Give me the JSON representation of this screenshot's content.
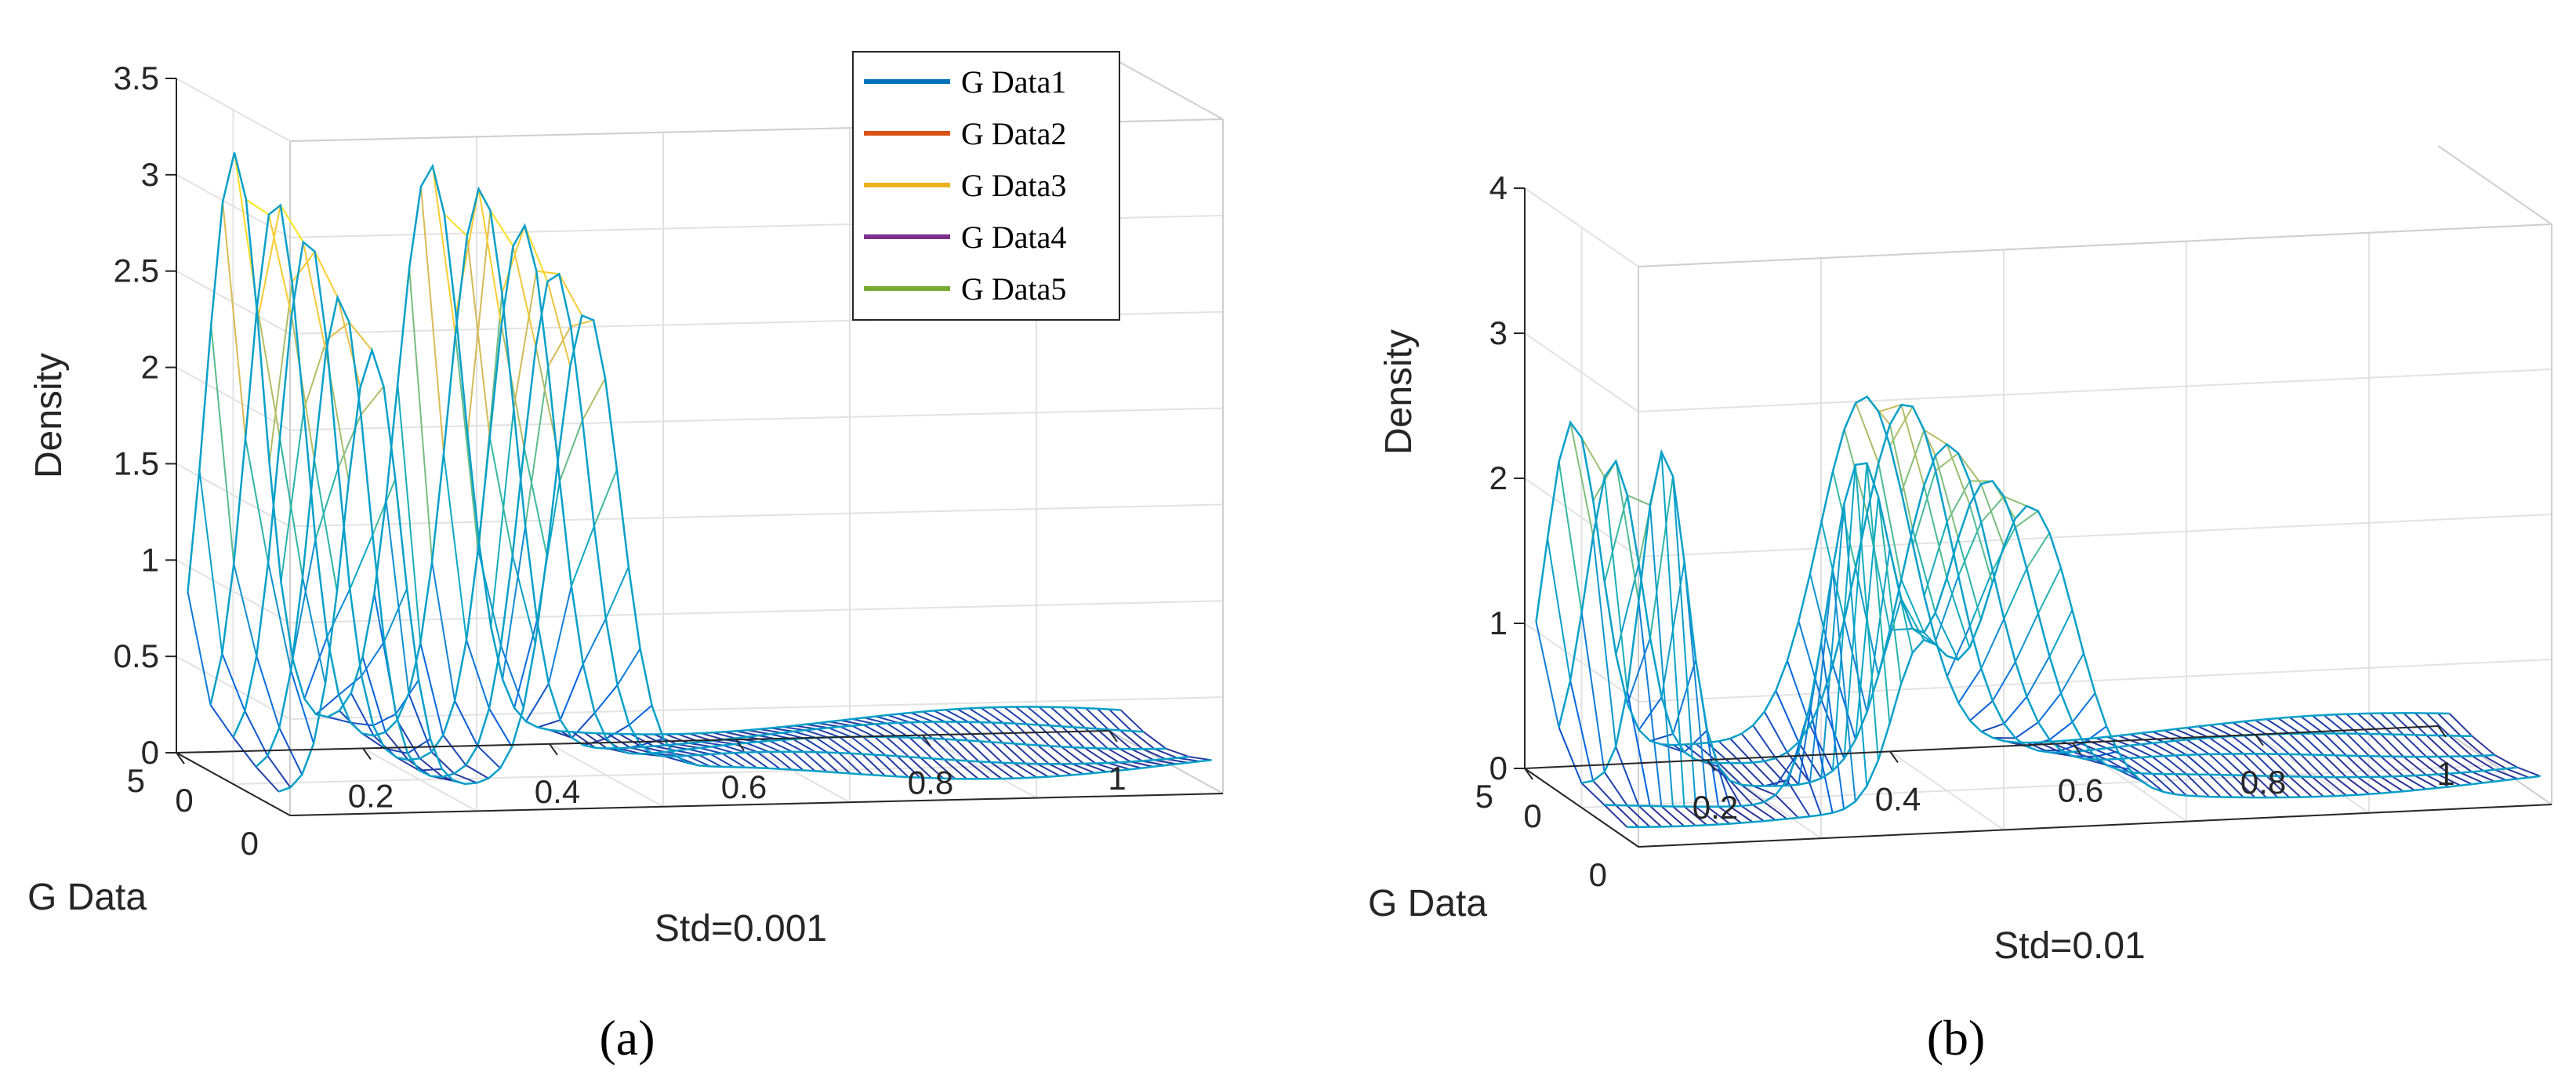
{
  "chart_data": [
    {
      "type": "surface-mesh",
      "panel_label": "(a)",
      "xlabel": "Std=0.001",
      "ylabel": "G Data",
      "zlabel": "Density",
      "xlim": [
        0,
        1
      ],
      "ylim": [
        0,
        5
      ],
      "zlim": [
        0,
        3.5
      ],
      "x_ticks": [
        "0",
        "0.2",
        "0.4",
        "0.6",
        "0.8",
        "1"
      ],
      "y_ticks": [
        "0",
        "5"
      ],
      "z_ticks": [
        "0",
        "0.5",
        "1",
        "1.5",
        "2",
        "2.5",
        "3",
        "3.5"
      ],
      "grid": true,
      "legend": {
        "placement": "top-right",
        "entries": [
          {
            "label": "G Data1",
            "color": "#0072BD"
          },
          {
            "label": "G Data2",
            "color": "#D95319"
          },
          {
            "label": "G Data3",
            "color": "#EDB120"
          },
          {
            "label": "G Data4",
            "color": "#7E2F8E"
          },
          {
            "label": "G Data5",
            "color": "#77AC30"
          }
        ]
      },
      "series": [
        {
          "name": "G Data1",
          "peaks": [
            {
              "x": 0.05,
              "height": 3.0,
              "width": 0.03
            },
            {
              "x": 0.26,
              "height": 2.9,
              "width": 0.035
            }
          ]
        },
        {
          "name": "G Data2",
          "peaks": [
            {
              "x": 0.07,
              "height": 2.8,
              "width": 0.03
            },
            {
              "x": 0.29,
              "height": 2.9,
              "width": 0.035
            }
          ]
        },
        {
          "name": "G Data3",
          "peaks": [
            {
              "x": 0.08,
              "height": 2.7,
              "width": 0.03
            },
            {
              "x": 0.31,
              "height": 2.8,
              "width": 0.035
            }
          ]
        },
        {
          "name": "G Data4",
          "peaks": [
            {
              "x": 0.09,
              "height": 2.5,
              "width": 0.03
            },
            {
              "x": 0.32,
              "height": 2.6,
              "width": 0.035
            }
          ]
        },
        {
          "name": "G Data5",
          "peaks": [
            {
              "x": 0.1,
              "height": 2.3,
              "width": 0.03
            },
            {
              "x": 0.33,
              "height": 2.4,
              "width": 0.035
            }
          ]
        }
      ]
    },
    {
      "type": "surface-mesh",
      "panel_label": "(b)",
      "xlabel": "Std=0.01",
      "ylabel": "G Data",
      "zlabel": "Density",
      "xlim": [
        0,
        1
      ],
      "ylim": [
        0,
        5
      ],
      "zlim": [
        0,
        4
      ],
      "x_ticks": [
        "0",
        "0.2",
        "0.4",
        "0.6",
        "0.8",
        "1"
      ],
      "y_ticks": [
        "0",
        "5"
      ],
      "z_ticks": [
        "0",
        "1",
        "2",
        "3",
        "4"
      ],
      "grid": true,
      "series": [
        {
          "name": "G Data1",
          "peaks": [
            {
              "x": 0.04,
              "height": 2.3,
              "width": 0.03
            },
            {
              "x": 0.36,
              "height": 2.4,
              "width": 0.05
            }
          ]
        },
        {
          "name": "G Data2",
          "peaks": [
            {
              "x": 0.06,
              "height": 2.1,
              "width": 0.03
            },
            {
              "x": 0.38,
              "height": 2.5,
              "width": 0.05
            }
          ]
        },
        {
          "name": "G Data3",
          "peaks": [
            {
              "x": 0.09,
              "height": 2.3,
              "width": 0.025
            },
            {
              "x": 0.4,
              "height": 2.3,
              "width": 0.05
            }
          ]
        },
        {
          "name": "G Data4",
          "peaks": [
            {
              "x": 0.28,
              "height": 2.3,
              "width": 0.035
            },
            {
              "x": 0.42,
              "height": 2.1,
              "width": 0.05
            }
          ]
        },
        {
          "name": "G Data5",
          "peaks": [
            {
              "x": 0.32,
              "height": 1.0,
              "width": 0.03
            },
            {
              "x": 0.44,
              "height": 2.0,
              "width": 0.05
            }
          ]
        }
      ]
    }
  ]
}
